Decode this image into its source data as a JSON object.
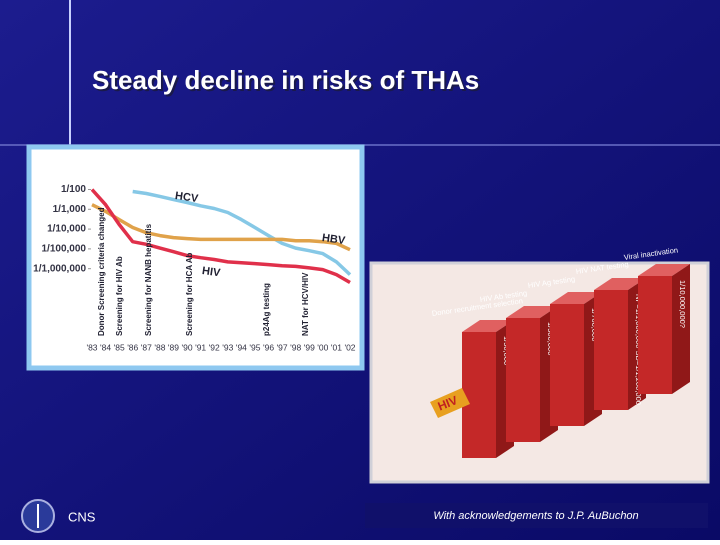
{
  "slide": {
    "title": "Steady decline in risks of THAs",
    "footer_left": "CNS",
    "footer_right": "With acknowledgements to J.P. AuBuchon"
  },
  "chart_data": {
    "type": "line",
    "log_scale": true,
    "categories": [
      "'83",
      "'84",
      "'85",
      "'86",
      "'87",
      "'88",
      "'89",
      "'90",
      "'91",
      "'92",
      "'93",
      "'94",
      "'95",
      "'96",
      "'97",
      "'98",
      "'99",
      "'00",
      "'01",
      "'02"
    ],
    "series": [
      {
        "name": "HCV",
        "color": "#86c8e6",
        "values": [
          null,
          null,
          null,
          0.0079,
          0.0063,
          0.0045,
          0.0031,
          0.0022,
          0.0015,
          0.0011,
          0.00069,
          0.0003,
          0.00012,
          4.7e-05,
          1.9e-05,
          1.1e-05,
          8.1e-06,
          5.8e-06,
          2.2e-06,
          5e-07
        ]
      },
      {
        "name": "HBV",
        "color": "#e0a24a",
        "values": [
          0.0017,
          0.00078,
          0.0003,
          0.00012,
          6.6e-05,
          4.7e-05,
          3.7e-05,
          3.3e-05,
          3e-05,
          3e-05,
          3e-05,
          3e-05,
          3e-05,
          3e-05,
          3e-05,
          2.6e-05,
          2.6e-05,
          2.3e-05,
          1.9e-05,
          9.1e-06
        ]
      },
      {
        "name": "HIV",
        "color": "#e0304a",
        "values": [
          0.01,
          0.0017,
          0.00017,
          2.3e-05,
          1.7e-05,
          1.1e-05,
          7.2e-06,
          4.6e-06,
          3.6e-06,
          2.9e-06,
          2.2e-06,
          2e-06,
          1.8e-06,
          1.6e-06,
          1.4e-06,
          1.3e-06,
          1.1e-06,
          9e-07,
          5e-07,
          2e-07
        ]
      }
    ],
    "ylim": [
      1.5e-07,
      0.015
    ],
    "yticks": [
      {
        "value": 0.01,
        "label": "1/100"
      },
      {
        "value": 0.001,
        "label": "1/1,000"
      },
      {
        "value": 0.0001,
        "label": "1/10,000"
      },
      {
        "value": 1e-05,
        "label": "1/100,000"
      },
      {
        "value": 1e-06,
        "label": "1/1,000,000"
      }
    ],
    "annotations": [
      "Donor Screening criteria changed",
      "Screening for HIV Ab",
      "Screening for NANB hepatitis",
      "Screening for HCA Ab",
      "p24Ag testing",
      "NAT for HCV/HIV"
    ]
  },
  "diagram": {
    "bullet": "HIV",
    "steps": [
      {
        "label": "Donor recruitment selection",
        "rate": "1/50,000"
      },
      {
        "label": "HIV Ab testing",
        "rate": "1/500,000"
      },
      {
        "label": "HIV Ag testing",
        "rate": "1/760,000"
      },
      {
        "label": "HIV NAT testing",
        "rate": "NP=1/1,000,000 SD=1/1,200,000"
      },
      {
        "label": "Viral inactivation",
        "rate": "1/10,000,000?"
      }
    ]
  }
}
